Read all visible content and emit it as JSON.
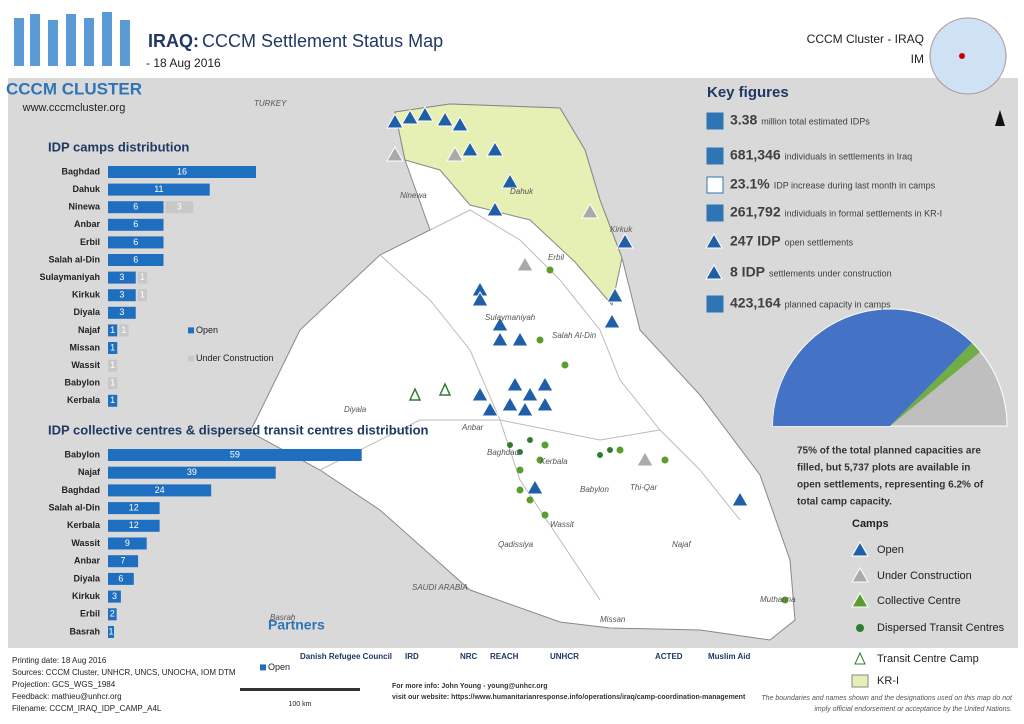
{
  "header": {
    "title_bold": "IRAQ:",
    "title": "CCCM Settlement Status Map",
    "date": "- 18 Aug 2016",
    "org": "CCCM Cluster - IRAQ",
    "unit": "IM",
    "logo_name": "CCCM CLUSTER",
    "logo_url": "www.cccmcluster.org"
  },
  "camps_chart": {
    "title": "IDP camps distribution",
    "categories": [
      "Baghdad",
      "Dahuk",
      "Ninewa",
      "Anbar",
      "Erbil",
      "Salah al-Din",
      "Sulaymaniyah",
      "Kirkuk",
      "Diyala",
      "Najaf",
      "Missan",
      "Wassit",
      "Babylon",
      "Kerbala"
    ],
    "series": [
      {
        "name": "Open",
        "color": "#1f6fc0",
        "values": [
          16,
          11,
          6,
          6,
          6,
          6,
          3,
          3,
          3,
          1,
          1,
          null,
          null,
          1
        ]
      },
      {
        "name": "Under Construction",
        "color": "#c8c8c8",
        "values": [
          null,
          null,
          3,
          null,
          null,
          null,
          1,
          1,
          null,
          1,
          null,
          1,
          1,
          null
        ]
      }
    ]
  },
  "centres_chart": {
    "title": "IDP collective centres & dispersed transit centres distribution",
    "categories": [
      "Babylon",
      "Najaf",
      "Baghdad",
      "Salah al-Din",
      "Kerbala",
      "Wassit",
      "Anbar",
      "Diyala",
      "Kirkuk",
      "Erbil",
      "Basrah"
    ],
    "series": [
      {
        "name": "Open",
        "color": "#1f6fc0",
        "values": [
          59,
          39,
          24,
          12,
          12,
          9,
          7,
          6,
          3,
          2,
          1
        ]
      }
    ]
  },
  "key_figures": {
    "title": "Key figures",
    "items": [
      {
        "value": "3.38",
        "text": "million total estimated IDPs"
      },
      {
        "value": "681,346",
        "text": "individuals in settlements in Iraq"
      },
      {
        "value": "23.1%",
        "text": "IDP  increase during last month in camps"
      },
      {
        "value": "261,792",
        "text": "individuals in formal settlements in KR-I"
      },
      {
        "value": "247 IDP",
        "text": "open settlements"
      },
      {
        "value": "8 IDP",
        "text": "settlements under construction"
      },
      {
        "value": "423,164",
        "text": "planned capacity in camps"
      }
    ],
    "note": [
      "75% of the total planned capacities are",
      "filled, but 5,737 plots are available in",
      "open settlements, representing 6.2% of",
      "total camp capacity."
    ]
  },
  "legend": {
    "title": "Camps",
    "items": [
      "Open",
      "Under Construction",
      "Collective Centre",
      "Dispersed Transit Centres",
      "Transit Centre Camp",
      "KR-I"
    ]
  },
  "map_labels": [
    "TURKEY",
    "Ninewa",
    "Dahuk",
    "Erbil",
    "Kirkuk",
    "Sulaymaniyah",
    "Salah Al-Din",
    "Diyala",
    "Anbar",
    "Baghdad",
    "Kerbala",
    "Babylon",
    "Wassit",
    "Qadissiya",
    "Najaf",
    "Thi-Qar",
    "Missan",
    "Muthanna",
    "Basrah",
    "SAUDI ARABIA"
  ],
  "partners": {
    "title": "Partners",
    "names": [
      "Danish Refugee Council",
      "IRD",
      "NRC",
      "REACH",
      "UNHCR",
      "ACTED",
      "Muslim Aid"
    ]
  },
  "footer": {
    "lines": [
      "Printing date: 18 Aug 2016",
      "Sources: CCCM Cluster, UNHCR, UNCS, UNOCHA, IOM DTM",
      "Projection: GCS_WGS_1984",
      "Feedback: mathieu@unhcr.org",
      "Filename: CCCM_IRAQ_IDP_CAMP_A4L"
    ],
    "scale": "100 km",
    "info": [
      "For more info: John Young - young@unhcr.org",
      "visit our website: https://www.humanitarianresponse.info/operations/iraq/camp-coordination-management"
    ],
    "disclaimer": [
      "The boundaries and names shown and the designations used on this map do not",
      "imply official endorsement or acceptance by the United Nations."
    ]
  }
}
